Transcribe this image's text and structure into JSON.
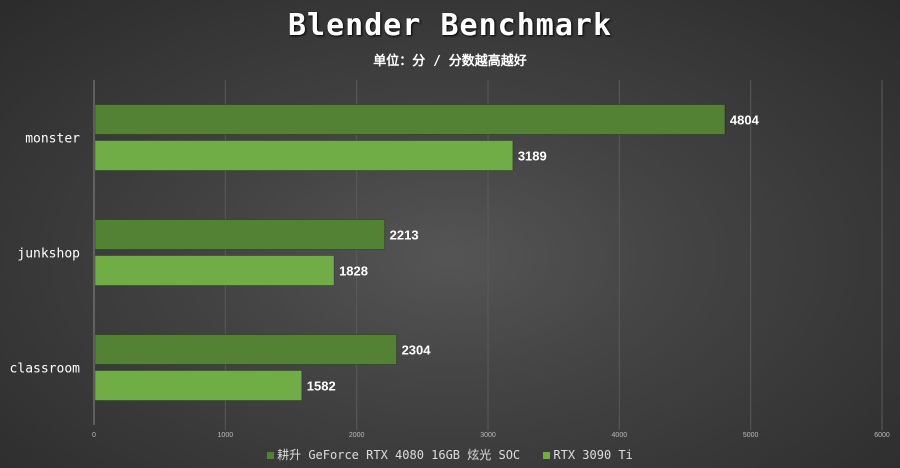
{
  "chart_data": {
    "type": "bar",
    "orientation": "horizontal",
    "title": "Blender Benchmark",
    "subtitle": "单位：分 / 分数越高越好",
    "categories": [
      "monster",
      "junkshop",
      "classroom"
    ],
    "series": [
      {
        "name": "耕升 GeForce RTX 4080 16GB 炫光 SOC",
        "values": [
          4804,
          2213,
          2304
        ],
        "color": "#538234"
      },
      {
        "name": "RTX 3090 Ti",
        "values": [
          3189,
          1828,
          1582
        ],
        "color": "#70AD47"
      }
    ],
    "xlim": [
      0,
      6000
    ],
    "xticks": [
      0,
      1000,
      2000,
      3000,
      4000,
      5000,
      6000
    ],
    "grid": true,
    "legend": "bottom"
  }
}
